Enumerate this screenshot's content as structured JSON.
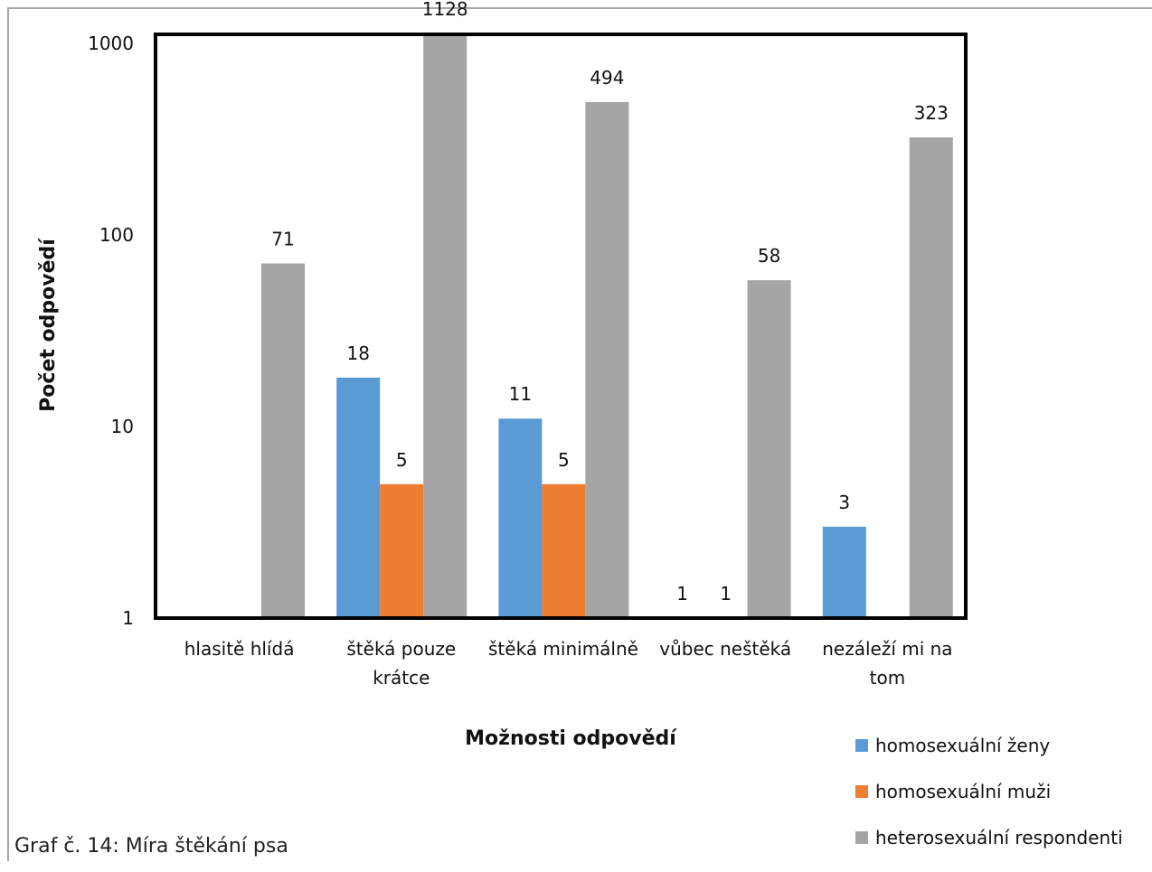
{
  "caption": "Graf č. 14: Míra štěkání psa",
  "chart_data": {
    "type": "bar",
    "title": "",
    "xlabel": "Možnosti odpovědí",
    "ylabel": "Počet odpovědí",
    "y_scale": "log",
    "ylim": [
      1,
      1000
    ],
    "y_ticks": [
      "1",
      "10",
      "100",
      "1000"
    ],
    "grid": false,
    "legend_position": "bottom-right",
    "categories": [
      [
        "hlasitě hlídá"
      ],
      [
        "štěká pouze",
        "krátce"
      ],
      [
        "štěká minimálně"
      ],
      [
        "vůbec neštěká"
      ],
      [
        "nezáleží mi na",
        "tom"
      ]
    ],
    "series": [
      {
        "name": "homosexuální ženy",
        "color": "#5b9bd5",
        "values": [
          null,
          18,
          11,
          1,
          3
        ],
        "labels": [
          "",
          "18",
          "11",
          "1",
          "3"
        ]
      },
      {
        "name": "homosexuální muži",
        "color": "#ed7d31",
        "values": [
          null,
          5,
          5,
          1,
          null
        ],
        "labels": [
          "",
          "5",
          "5",
          "1",
          ""
        ]
      },
      {
        "name": "heterosexuální respondenti",
        "color": "#a5a5a5",
        "values": [
          71,
          1128,
          494,
          58,
          323
        ],
        "labels": [
          "71",
          "1128",
          "494",
          "58",
          "323"
        ]
      }
    ]
  }
}
